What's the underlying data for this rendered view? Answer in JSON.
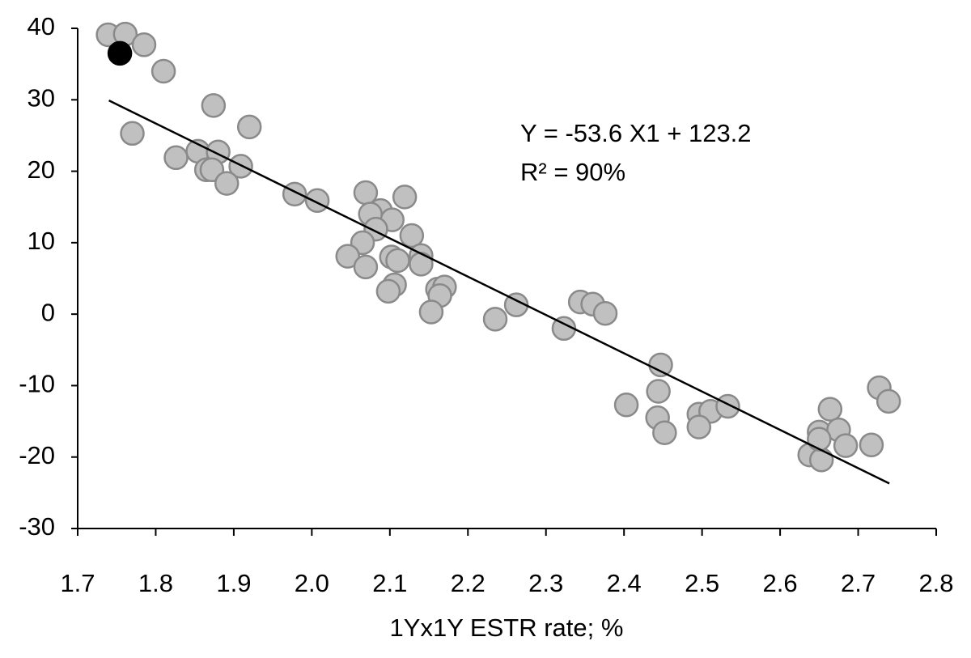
{
  "chart_data": {
    "type": "scatter",
    "xlabel": "1Yx1Y ESTR rate; %",
    "annotations": [
      "Y = -53.6 X1 + 123.2",
      "R² = 90%"
    ],
    "xlim": [
      1.7,
      2.8
    ],
    "xticks": [
      1.7,
      1.8,
      1.9,
      {
        "value": 2,
        "label": "2.0"
      },
      2.1,
      2.2,
      2.3,
      2.4,
      2.5,
      2.6,
      2.7,
      2.8
    ],
    "ylim": [
      -30,
      40
    ],
    "yticks": [
      -30,
      -20,
      -10,
      0,
      10,
      20,
      30,
      40
    ],
    "series": [
      {
        "color": "#c0c0c0",
        "x": [
          1.739,
          1.761,
          1.785,
          1.81,
          1.77,
          1.874,
          1.92,
          1.826,
          1.854,
          1.88,
          1.865,
          1.872,
          1.909,
          1.891,
          1.978,
          2.007,
          2.069,
          2.088,
          2.103,
          2.075,
          2.082,
          2.119,
          2.065,
          2.046,
          2.069,
          2.128,
          2.102,
          2.11,
          2.14,
          2.14,
          2.106,
          2.098,
          2.161,
          2.17,
          2.164,
          2.153,
          2.235,
          2.262,
          2.323,
          2.344,
          2.36,
          2.376,
          2.447,
          2.403,
          2.444,
          2.443,
          2.452,
          2.496,
          2.511,
          2.533,
          2.496,
          2.727,
          2.664,
          2.739,
          2.65,
          2.675,
          2.638,
          2.653,
          2.65,
          2.684,
          2.717
        ],
        "values": [
          39.1,
          39.2,
          37.7,
          34.0,
          25.3,
          29.2,
          26.2,
          21.9,
          22.8,
          22.7,
          20.2,
          20.2,
          20.7,
          18.3,
          16.8,
          15.9,
          17.0,
          14.5,
          13.2,
          14.0,
          11.9,
          16.4,
          10.0,
          8.1,
          6.6,
          11.0,
          8.0,
          7.5,
          8.2,
          7.0,
          4.1,
          3.2,
          3.5,
          3.8,
          2.6,
          0.3,
          -0.7,
          1.3,
          -2.0,
          1.7,
          1.4,
          0.1,
          -7.1,
          -12.7,
          -10.8,
          -14.5,
          -16.6,
          -14.0,
          -13.6,
          -12.9,
          -15.8,
          -10.3,
          -13.3,
          -12.2,
          -16.5,
          -16.2,
          -19.7,
          -20.4,
          -17.5,
          -18.4,
          -18.3
        ]
      },
      {
        "color": "#000000",
        "x": [
          1.754
        ],
        "values": [
          36.5
        ]
      }
    ],
    "trendline": {
      "color": "#000000",
      "x": [
        1.74,
        2.74
      ],
      "values": [
        29.9,
        -23.7
      ]
    }
  }
}
